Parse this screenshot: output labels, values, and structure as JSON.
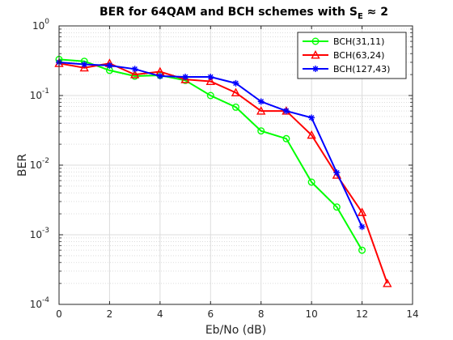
{
  "chart_data": {
    "type": "line",
    "title": "BER for 64QAM and BCH schemes with S",
    "title_subscript": "E",
    "title_suffix": " ≈ 2",
    "xlabel": "Eb/No (dB)",
    "ylabel": "BER",
    "xlim": [
      0,
      14
    ],
    "ylim": [
      0.0001,
      1
    ],
    "yscale": "log",
    "grid": true,
    "minor_grid": true,
    "legend_position": "top-right",
    "x_ticks": [
      "0",
      "2",
      "4",
      "6",
      "8",
      "10",
      "12",
      "14"
    ],
    "y_ticks": [
      {
        "base": "10",
        "exp": "0"
      },
      {
        "base": "10",
        "exp": "-1"
      },
      {
        "base": "10",
        "exp": "-2"
      },
      {
        "base": "10",
        "exp": "-3"
      },
      {
        "base": "10",
        "exp": "-4"
      }
    ],
    "series": [
      {
        "name": "BCH(31,11)",
        "color": "#00ff00",
        "marker": "circle",
        "x": [
          0,
          1,
          2,
          3,
          4,
          5,
          6,
          7,
          8,
          9,
          10,
          11,
          12
        ],
        "y": [
          0.33,
          0.31,
          0.23,
          0.19,
          0.195,
          0.165,
          0.1,
          0.068,
          0.031,
          0.024,
          0.0057,
          0.0025,
          0.0006
        ]
      },
      {
        "name": "BCH(63,24)",
        "color": "#ff0000",
        "marker": "triangle",
        "x": [
          0,
          1,
          2,
          3,
          4,
          5,
          6,
          7,
          8,
          9,
          10,
          11,
          12,
          13
        ],
        "y": [
          0.29,
          0.25,
          0.29,
          0.2,
          0.22,
          0.17,
          0.16,
          0.11,
          0.06,
          0.06,
          0.027,
          0.0072,
          0.0021,
          0.0002
        ]
      },
      {
        "name": "BCH(127,43)",
        "color": "#0000ff",
        "marker": "asterisk",
        "x": [
          0,
          1,
          2,
          3,
          4,
          5,
          6,
          7,
          8,
          9,
          10,
          11,
          12
        ],
        "y": [
          0.3,
          0.28,
          0.27,
          0.24,
          0.19,
          0.185,
          0.185,
          0.15,
          0.082,
          0.06,
          0.048,
          0.0078,
          0.0013
        ]
      }
    ]
  }
}
